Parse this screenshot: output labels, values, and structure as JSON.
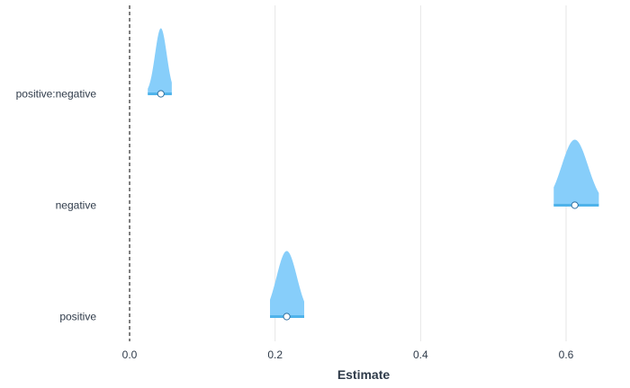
{
  "chart_data": {
    "type": "density",
    "x_axis": {
      "label": "Estimate",
      "range": [
        -0.02,
        0.66
      ],
      "ticks": [
        0.0,
        0.2,
        0.4,
        0.6
      ],
      "tick_labels": [
        "0.0",
        "0.2",
        "0.4",
        "0.6"
      ],
      "grid": true
    },
    "y_axis": {
      "label": "",
      "categories": [
        "positive:negative",
        "negative",
        "positive"
      ]
    },
    "reference_line": {
      "x": 0.0,
      "style": "dashed"
    },
    "series": [
      {
        "category": "positive:negative",
        "estimate": 0.043,
        "sd": 0.008,
        "lower": 0.025,
        "upper": 0.058
      },
      {
        "category": "negative",
        "estimate": 0.612,
        "sd": 0.018,
        "lower": 0.583,
        "upper": 0.645
      },
      {
        "category": "positive",
        "estimate": 0.216,
        "sd": 0.014,
        "lower": 0.193,
        "upper": 0.24
      }
    ],
    "fill_color": "#87cefa",
    "line_color": "#4fb3ea",
    "point_fill": "#ffffff",
    "point_stroke": "#2f6f9f",
    "legend": "none"
  }
}
